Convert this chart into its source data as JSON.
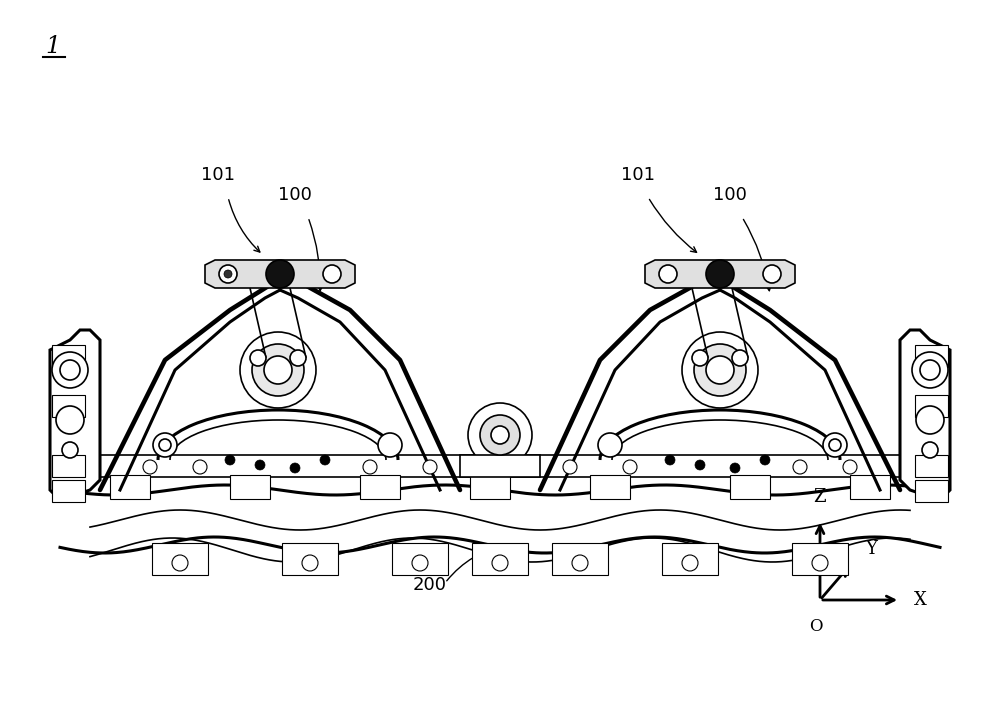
{
  "bg_color": "#ffffff",
  "fig_width": 10.0,
  "fig_height": 7.24,
  "dpi": 100,
  "label_1": "1",
  "label_100_left": "100",
  "label_101_left": "101",
  "label_100_right": "100",
  "label_101_right": "101",
  "label_200": "200",
  "axis_labels": {
    "x": "X",
    "y": "Y",
    "z": "Z",
    "o": "O"
  },
  "font_size": 13,
  "line_color": "#000000",
  "component_lw": 2.2,
  "detail_lw": 1.2,
  "thin_lw": 0.8,
  "note_fs": 12
}
